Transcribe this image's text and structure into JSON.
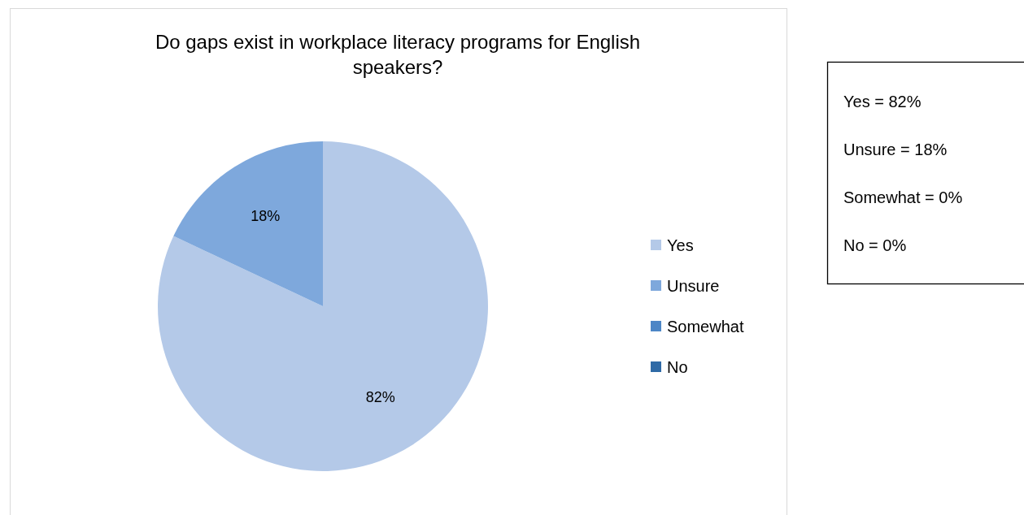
{
  "chart_data": {
    "type": "pie",
    "title": "Do gaps exist in workplace literacy programs for English speakers?",
    "categories": [
      "Yes",
      "Unsure",
      "Somewhat",
      "No"
    ],
    "values": [
      82,
      18,
      0,
      0
    ],
    "colors": [
      "#b4c9e8",
      "#7ea8dc",
      "#4d86c6",
      "#2f6aa6"
    ],
    "value_labels": [
      "82%",
      "18%",
      null,
      null
    ],
    "legend": "right",
    "annotations": [
      "Yes = 82%",
      "Unsure = 18%",
      "Somewhat = 0%",
      "No = 0%"
    ]
  }
}
